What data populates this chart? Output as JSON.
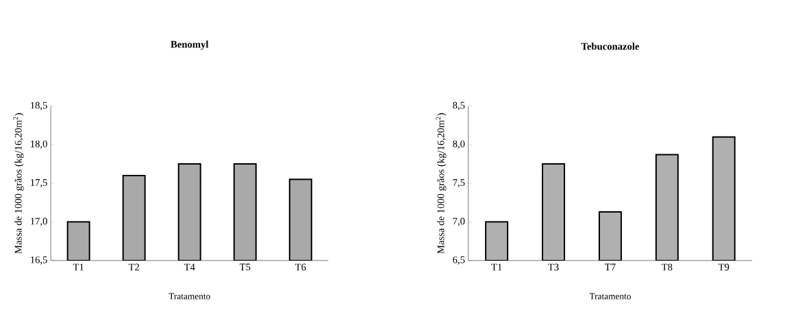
{
  "chart_data": [
    {
      "type": "bar",
      "title": "Benomyl",
      "xlabel": "Tratamento",
      "ylabel": "Massa de 1000 grãos (kg/16,20m$^{2}$)",
      "categories": [
        "T1",
        "T2",
        "T4",
        "T5",
        "T6"
      ],
      "values": [
        17.0,
        17.6,
        17.75,
        17.75,
        17.55
      ],
      "color": "#a9a9a9",
      "ylim": [
        16.5,
        18.5
      ],
      "yticks": [
        {
          "value": 16.5,
          "label": "16,5"
        },
        {
          "value": 17.0,
          "label": "17,0"
        },
        {
          "value": 17.5,
          "label": "17,5"
        },
        {
          "value": 18.0,
          "label": "18,0"
        },
        {
          "value": 18.5,
          "label": "18,5"
        }
      ],
      "grid": false
    },
    {
      "type": "bar",
      "title": "Tebuconazole",
      "xlabel": "Tratamento",
      "ylabel": "Massa de 1000 grãos (kg/16,20m$^{2}$)",
      "categories": [
        "T1",
        "T3",
        "T7",
        "T8",
        "T9"
      ],
      "values": [
        7.0,
        7.75,
        7.13,
        7.87,
        8.1
      ],
      "color": "#b0b0b0",
      "ylim": [
        6.5,
        8.5
      ],
      "yticks": [
        {
          "value": 6.5,
          "label": "6,5"
        },
        {
          "value": 7.0,
          "label": "7,0"
        },
        {
          "value": 7.5,
          "label": "7,5"
        },
        {
          "value": 8.0,
          "label": "8,0"
        },
        {
          "value": 8.5,
          "label": "8,5"
        }
      ],
      "grid": false
    }
  ]
}
